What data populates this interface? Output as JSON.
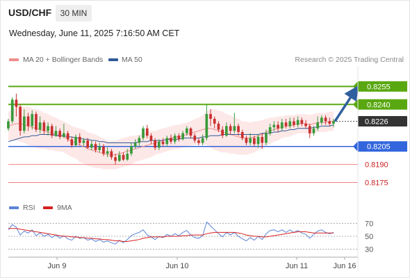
{
  "header": {
    "symbol": "USD/CHF",
    "timeframe": "30 MIN",
    "datetime": "Wednesday, June 11, 2025 7:16:50 AM CET"
  },
  "legend": {
    "ma20_label": "MA 20 + Bollinger Bands",
    "ma20_color": "#f08c8c",
    "ma50_label": "MA 50",
    "ma50_color": "#2e5a96",
    "copyright": "Research © 2025 Trading Central"
  },
  "rsi_legend": {
    "rsi_label": "RSI",
    "rsi_color": "#5b84d6",
    "ma9_label": "9MA",
    "ma9_color": "#d62020"
  },
  "chart_data": [
    {
      "type": "candlestick",
      "title": "USD/CHF 30 MIN",
      "x_tick_labels": [
        "Jun 9",
        "Jun 10",
        "Jun 11",
        "Jun 16"
      ],
      "levels": [
        {
          "label": "0.8255",
          "value": 0.8255,
          "kind": "resistance",
          "color": "#5aa811"
        },
        {
          "label": "0.8240",
          "value": 0.824,
          "kind": "resistance",
          "color": "#5aa811"
        },
        {
          "label": "0.8226",
          "value": 0.8226,
          "kind": "last",
          "color": "#333333"
        },
        {
          "label": "0.8205",
          "value": 0.8205,
          "kind": "pivot",
          "color": "#3366dd"
        },
        {
          "label": "0.8190",
          "value": 0.819,
          "kind": "support",
          "color": "#f08080"
        },
        {
          "label": "0.8175",
          "value": 0.8175,
          "kind": "support",
          "color": "#f08080"
        }
      ],
      "ylim": [
        0.8162,
        0.8272
      ],
      "path_forecast": {
        "from": 0.8226,
        "to": 0.8253,
        "direction": "up",
        "color": "#2f5f9e"
      },
      "candles": [
        [
          0.822,
          0.8226,
          0.8228,
          0.8218
        ],
        [
          0.8226,
          0.8244,
          0.8246,
          0.8224
        ],
        [
          0.8244,
          0.8238,
          0.8249,
          0.823
        ],
        [
          0.8238,
          0.8218,
          0.824,
          0.8214
        ],
        [
          0.8218,
          0.823,
          0.8236,
          0.8216
        ],
        [
          0.823,
          0.8222,
          0.8233,
          0.8218
        ],
        [
          0.8222,
          0.8232,
          0.8235,
          0.8219
        ],
        [
          0.8232,
          0.8219,
          0.8234,
          0.8217
        ],
        [
          0.8219,
          0.8225,
          0.823,
          0.8216
        ],
        [
          0.8225,
          0.8218,
          0.8227,
          0.8215
        ],
        [
          0.8218,
          0.8222,
          0.8225,
          0.8214
        ],
        [
          0.8222,
          0.8214,
          0.8224,
          0.8212
        ],
        [
          0.8214,
          0.8218,
          0.8222,
          0.8213
        ],
        [
          0.8218,
          0.8213,
          0.822,
          0.8211
        ],
        [
          0.8213,
          0.8216,
          0.8224,
          0.8212
        ],
        [
          0.8216,
          0.8211,
          0.8218,
          0.8209
        ],
        [
          0.8211,
          0.8206,
          0.8213,
          0.8204
        ],
        [
          0.8206,
          0.8213,
          0.8215,
          0.8205
        ],
        [
          0.8213,
          0.8208,
          0.8216,
          0.8206
        ],
        [
          0.8208,
          0.821,
          0.8212,
          0.8205
        ],
        [
          0.821,
          0.8204,
          0.8212,
          0.8203
        ],
        [
          0.8204,
          0.8207,
          0.821,
          0.8202
        ],
        [
          0.8207,
          0.8202,
          0.8209,
          0.82
        ],
        [
          0.8202,
          0.8205,
          0.8208,
          0.82
        ],
        [
          0.8205,
          0.8199,
          0.8207,
          0.8197
        ],
        [
          0.8199,
          0.8201,
          0.8204,
          0.8196
        ],
        [
          0.8201,
          0.8196,
          0.8203,
          0.8194
        ],
        [
          0.8196,
          0.8193,
          0.8199,
          0.819
        ],
        [
          0.8193,
          0.8198,
          0.8201,
          0.8192
        ],
        [
          0.8198,
          0.8194,
          0.82,
          0.8193
        ],
        [
          0.8194,
          0.8199,
          0.8203,
          0.8193
        ],
        [
          0.8199,
          0.8205,
          0.8208,
          0.8197
        ],
        [
          0.8205,
          0.8208,
          0.8211,
          0.8203
        ],
        [
          0.8208,
          0.8212,
          0.8214,
          0.8205
        ],
        [
          0.8212,
          0.822,
          0.8222,
          0.821
        ],
        [
          0.822,
          0.8214,
          0.8223,
          0.8212
        ],
        [
          0.8214,
          0.821,
          0.8216,
          0.8207
        ],
        [
          0.821,
          0.8204,
          0.8212,
          0.8202
        ],
        [
          0.8204,
          0.8209,
          0.8211,
          0.8202
        ],
        [
          0.8209,
          0.8207,
          0.8212,
          0.8205
        ],
        [
          0.8207,
          0.8212,
          0.8214,
          0.8205
        ],
        [
          0.8212,
          0.8209,
          0.8215,
          0.8207
        ],
        [
          0.8209,
          0.8214,
          0.8216,
          0.8207
        ],
        [
          0.8214,
          0.8211,
          0.8216,
          0.8209
        ],
        [
          0.8211,
          0.8216,
          0.8218,
          0.821
        ],
        [
          0.8216,
          0.822,
          0.8222,
          0.8214
        ],
        [
          0.822,
          0.8214,
          0.8221,
          0.8212
        ],
        [
          0.8214,
          0.821,
          0.8216,
          0.8208
        ],
        [
          0.821,
          0.8208,
          0.8212,
          0.8206
        ],
        [
          0.8208,
          0.8212,
          0.8215,
          0.8206
        ],
        [
          0.8212,
          0.8232,
          0.824,
          0.821
        ],
        [
          0.8232,
          0.8228,
          0.8236,
          0.8222
        ],
        [
          0.8228,
          0.8224,
          0.823,
          0.822
        ],
        [
          0.8224,
          0.8219,
          0.8226,
          0.8217
        ],
        [
          0.8219,
          0.8214,
          0.8222,
          0.8212
        ],
        [
          0.8214,
          0.8222,
          0.8225,
          0.8213
        ],
        [
          0.8222,
          0.8218,
          0.8224,
          0.8215
        ],
        [
          0.8218,
          0.8222,
          0.8233,
          0.8216
        ],
        [
          0.8222,
          0.8217,
          0.8224,
          0.8214
        ],
        [
          0.8217,
          0.8212,
          0.8219,
          0.821
        ],
        [
          0.8212,
          0.8208,
          0.8214,
          0.8206
        ],
        [
          0.8208,
          0.8212,
          0.8216,
          0.8206
        ],
        [
          0.8212,
          0.8207,
          0.8214,
          0.8205
        ],
        [
          0.8207,
          0.8213,
          0.8215,
          0.8204
        ],
        [
          0.8213,
          0.8208,
          0.8216,
          0.8203
        ],
        [
          0.8208,
          0.8216,
          0.8219,
          0.8206
        ],
        [
          0.8216,
          0.8221,
          0.8224,
          0.8214
        ],
        [
          0.8221,
          0.8223,
          0.8226,
          0.8218
        ],
        [
          0.8223,
          0.822,
          0.8226,
          0.8217
        ],
        [
          0.822,
          0.8225,
          0.8228,
          0.8218
        ],
        [
          0.8225,
          0.8222,
          0.8228,
          0.822
        ],
        [
          0.8222,
          0.8226,
          0.8229,
          0.822
        ],
        [
          0.8226,
          0.8223,
          0.8229,
          0.8221
        ],
        [
          0.8223,
          0.8227,
          0.823,
          0.8221
        ],
        [
          0.8227,
          0.8224,
          0.8229,
          0.8222
        ],
        [
          0.8224,
          0.8222,
          0.8227,
          0.822
        ],
        [
          0.8222,
          0.8216,
          0.8224,
          0.8212
        ],
        [
          0.8216,
          0.822,
          0.8222,
          0.8214
        ],
        [
          0.822,
          0.8225,
          0.823,
          0.8218
        ],
        [
          0.8225,
          0.8229,
          0.8231,
          0.8223
        ],
        [
          0.8229,
          0.8226,
          0.8231,
          0.8223
        ],
        [
          0.8226,
          0.8224,
          0.8229,
          0.8222
        ],
        [
          0.8224,
          0.8226,
          0.8228,
          0.8221
        ]
      ],
      "ma20": [
        0.8222,
        0.8223,
        0.8224,
        0.8224,
        0.8223,
        0.8222,
        0.8221,
        0.822,
        0.8219,
        0.8218,
        0.8217,
        0.8216,
        0.8215,
        0.8214,
        0.8213,
        0.8211,
        0.8209,
        0.8208,
        0.8206,
        0.8205,
        0.8203,
        0.8202,
        0.8201,
        0.82,
        0.8199,
        0.8198,
        0.8198,
        0.8198,
        0.8199,
        0.82,
        0.8201,
        0.8202,
        0.8203,
        0.8204,
        0.8205,
        0.8206,
        0.8207,
        0.8208,
        0.8209,
        0.821,
        0.8211,
        0.8212,
        0.8213,
        0.8213,
        0.8214,
        0.8215,
        0.8216,
        0.8217,
        0.8218,
        0.8219,
        0.822,
        0.822,
        0.8219,
        0.8218,
        0.8217,
        0.8216,
        0.8215,
        0.8214,
        0.8213,
        0.8212,
        0.8212,
        0.8212,
        0.8213,
        0.8214,
        0.8215,
        0.8217,
        0.8218,
        0.8219,
        0.822,
        0.8221,
        0.8222,
        0.8222,
        0.8223,
        0.8224,
        0.8224,
        0.8224,
        0.8223,
        0.8224,
        0.8225,
        0.8225,
        0.8225,
        0.8226,
        0.8226
      ],
      "ma50": [
        0.8209,
        0.821,
        0.8211,
        0.8212,
        0.8213,
        0.8213,
        0.8214,
        0.8214,
        0.8215,
        0.8215,
        0.8215,
        0.8215,
        0.8214,
        0.8214,
        0.8214,
        0.8213,
        0.8213,
        0.8212,
        0.8212,
        0.8211,
        0.8211,
        0.821,
        0.821,
        0.8209,
        0.8209,
        0.8208,
        0.8208,
        0.8208,
        0.8208,
        0.8208,
        0.8208,
        0.8208,
        0.8208,
        0.8209,
        0.8209,
        0.8209,
        0.821,
        0.821,
        0.821,
        0.821,
        0.8211,
        0.8211,
        0.8211,
        0.8211,
        0.8212,
        0.8212,
        0.8212,
        0.8212,
        0.8212,
        0.8213,
        0.8213,
        0.8214,
        0.8214,
        0.8214,
        0.8215,
        0.8215,
        0.8215,
        0.8215,
        0.8215,
        0.8215,
        0.8215,
        0.8215,
        0.8215,
        0.8215,
        0.8216,
        0.8216,
        0.8216,
        0.8217,
        0.8217,
        0.8218,
        0.8218,
        0.8219,
        0.8219,
        0.822,
        0.822,
        0.822,
        0.822,
        0.8221,
        0.8221,
        0.8222,
        0.8222,
        0.8222,
        0.8223
      ],
      "bb_halfwidth": [
        0.0012,
        0.0013,
        0.0014,
        0.0015,
        0.0015,
        0.0016,
        0.0016,
        0.0016,
        0.0016,
        0.0015,
        0.0015,
        0.0014,
        0.0014,
        0.0013,
        0.0013,
        0.0013,
        0.0013,
        0.0013,
        0.0014,
        0.0014,
        0.0014,
        0.0014,
        0.0014,
        0.0013,
        0.0013,
        0.0012,
        0.0012,
        0.0012,
        0.0012,
        0.0012,
        0.0012,
        0.0012,
        0.0011,
        0.0011,
        0.0011,
        0.0011,
        0.0011,
        0.001,
        0.001,
        0.001,
        0.001,
        0.001,
        0.001,
        0.001,
        0.001,
        0.001,
        0.001,
        0.0011,
        0.0011,
        0.0012,
        0.0014,
        0.0016,
        0.0017,
        0.0017,
        0.0017,
        0.0016,
        0.0016,
        0.0015,
        0.0015,
        0.0014,
        0.0014,
        0.0013,
        0.0013,
        0.0012,
        0.0012,
        0.0011,
        0.0011,
        0.001,
        0.001,
        0.0009,
        0.0009,
        0.0009,
        0.0008,
        0.0008,
        0.0008,
        0.0008,
        0.0008,
        0.0008,
        0.0008,
        0.0008,
        0.0008,
        0.0008,
        0.0008
      ]
    },
    {
      "type": "line",
      "title": "RSI",
      "yticks": [
        70,
        50,
        30
      ],
      "ylim": [
        20,
        80
      ],
      "series": [
        {
          "name": "RSI",
          "values": [
            60,
            68,
            64,
            52,
            58,
            55,
            60,
            51,
            55,
            50,
            53,
            48,
            52,
            47,
            51,
            46,
            44,
            50,
            47,
            48,
            44,
            46,
            42,
            45,
            41,
            43,
            40,
            38,
            44,
            40,
            45,
            51,
            54,
            56,
            60,
            52,
            49,
            45,
            50,
            48,
            53,
            50,
            54,
            51,
            56,
            59,
            52,
            48,
            47,
            51,
            72,
            66,
            60,
            54,
            49,
            56,
            52,
            56,
            50,
            46,
            43,
            48,
            44,
            50,
            45,
            54,
            59,
            60,
            57,
            60,
            56,
            60,
            56,
            59,
            55,
            53,
            47,
            53,
            58,
            60,
            56,
            54,
            56
          ]
        },
        {
          "name": "9MA",
          "values": [
            62,
            62,
            62,
            61,
            60,
            59,
            58,
            57,
            56,
            55,
            54,
            53,
            52,
            51,
            50,
            50,
            49,
            49,
            48,
            48,
            47,
            47,
            46,
            46,
            45,
            45,
            44,
            43,
            43,
            42,
            42,
            43,
            44,
            45,
            47,
            48,
            49,
            49,
            49,
            49,
            50,
            50,
            50,
            50,
            51,
            51,
            52,
            52,
            52,
            52,
            54,
            55,
            56,
            56,
            56,
            56,
            56,
            56,
            55,
            54,
            52,
            51,
            50,
            50,
            49,
            49,
            50,
            51,
            52,
            53,
            54,
            55,
            56,
            57,
            57,
            57,
            56,
            55,
            55,
            55,
            55,
            55,
            55
          ]
        }
      ]
    }
  ]
}
